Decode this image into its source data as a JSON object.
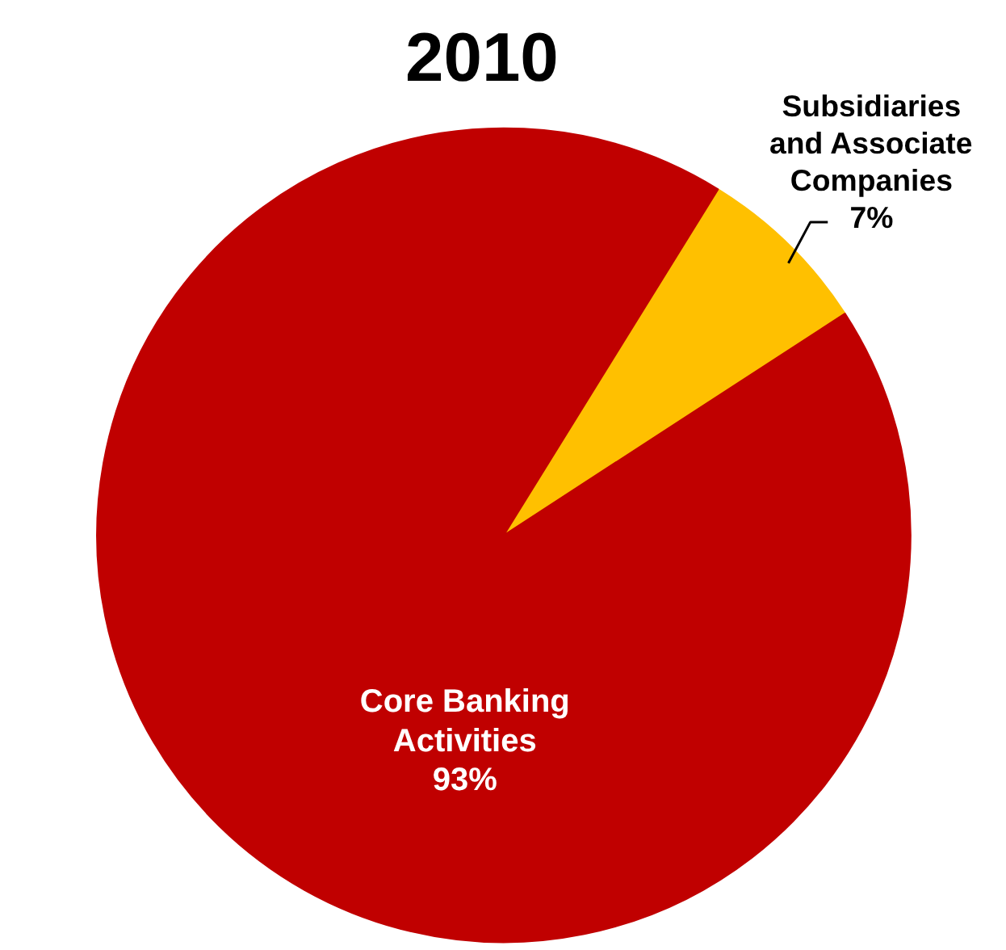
{
  "chart_data": {
    "type": "pie",
    "title": "2010",
    "categories": [
      "Subsidiaries and Associate Companies",
      "Core Banking Activities"
    ],
    "values": [
      7,
      93
    ],
    "colors": [
      "#ffc000",
      "#c00000"
    ],
    "value_labels": [
      "7%",
      "93%"
    ]
  }
}
